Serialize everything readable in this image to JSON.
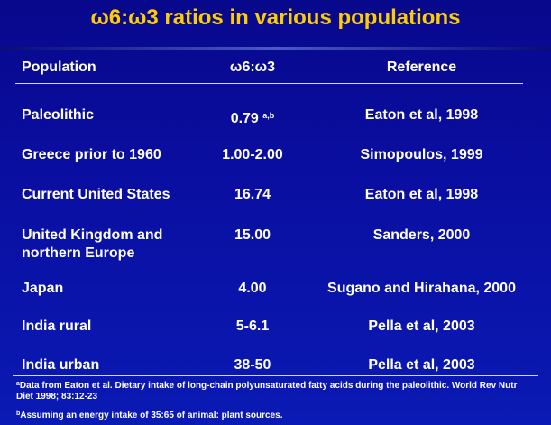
{
  "title": "ω6:ω3 ratios in various populations",
  "headers": {
    "population": "Population",
    "ratio": "ω6:ω3",
    "reference": "Reference"
  },
  "rows": [
    {
      "population": "Paleolithic",
      "ratio": "0.79",
      "ratio_sup": "a,b",
      "reference": "Eaton et al, 1998"
    },
    {
      "population": "Greece prior to 1960",
      "ratio": "1.00-2.00",
      "reference": "Simopoulos, 1999"
    },
    {
      "population": "Current United States",
      "ratio": "16.74",
      "reference": "Eaton et al, 1998"
    },
    {
      "population_line1": "United Kingdom and",
      "population_line2": "northern Europe",
      "ratio": "15.00",
      "reference": "Sanders, 2000"
    },
    {
      "population": "Japan",
      "ratio": "4.00",
      "reference": "Sugano and Hirahana, 2000"
    },
    {
      "population": "India rural",
      "ratio": "5-6.1",
      "reference": "Pella et al, 2003"
    },
    {
      "population": "India urban",
      "ratio": "38-50",
      "reference": "Pella et al, 2003"
    }
  ],
  "footnotes": {
    "a_mark": "a",
    "a_text": "Data from Eaton et al. Dietary intake of long-chain polyunsaturated fatty acids during the paleolithic. World Rev Nutr Diet 1998; 83:12-23",
    "b_mark": "b",
    "b_text": "Assuming an energy intake of 35:65 of animal: plant sources."
  }
}
